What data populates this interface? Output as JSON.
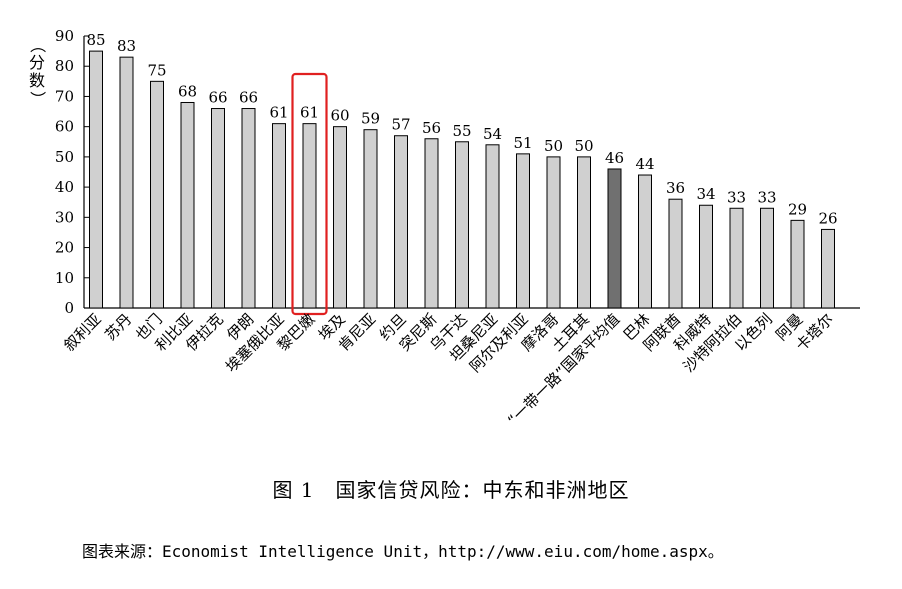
{
  "caption": "图 1　国家信贷风险：中东和非洲地区",
  "source": "图表来源：Economist Intelligence Unit，http://www.eiu.com/home.aspx。",
  "chart_data": {
    "type": "bar",
    "title": "",
    "ylabel": "（分数）",
    "xlabel": "",
    "ylim": [
      0,
      90
    ],
    "yticks": [
      0,
      10,
      20,
      30,
      40,
      50,
      60,
      70,
      80,
      90
    ],
    "grid": false,
    "categories": [
      "叙利亚",
      "苏丹",
      "也门",
      "利比亚",
      "伊拉克",
      "伊朗",
      "埃塞俄比亚",
      "黎巴嫩",
      "埃及",
      "肯尼亚",
      "约旦",
      "突尼斯",
      "乌干达",
      "坦桑尼亚",
      "阿尔及利亚",
      "摩洛哥",
      "土耳其",
      "“一带一路”国家平均值",
      "巴林",
      "阿联酋",
      "科威特",
      "沙特阿拉伯",
      "以色列",
      "阿曼",
      "卡塔尔"
    ],
    "values": [
      85,
      83,
      75,
      68,
      66,
      66,
      61,
      61,
      60,
      59,
      57,
      56,
      55,
      54,
      51,
      50,
      50,
      46,
      44,
      36,
      34,
      33,
      33,
      29,
      26
    ],
    "highlight_category": "黎巴嫩",
    "average_category": "“一带一路”国家平均值",
    "colors": {
      "bar": "#d0d0d0",
      "average_bar": "#707070",
      "highlight_box": "#e02020",
      "stroke": "#000000"
    }
  }
}
